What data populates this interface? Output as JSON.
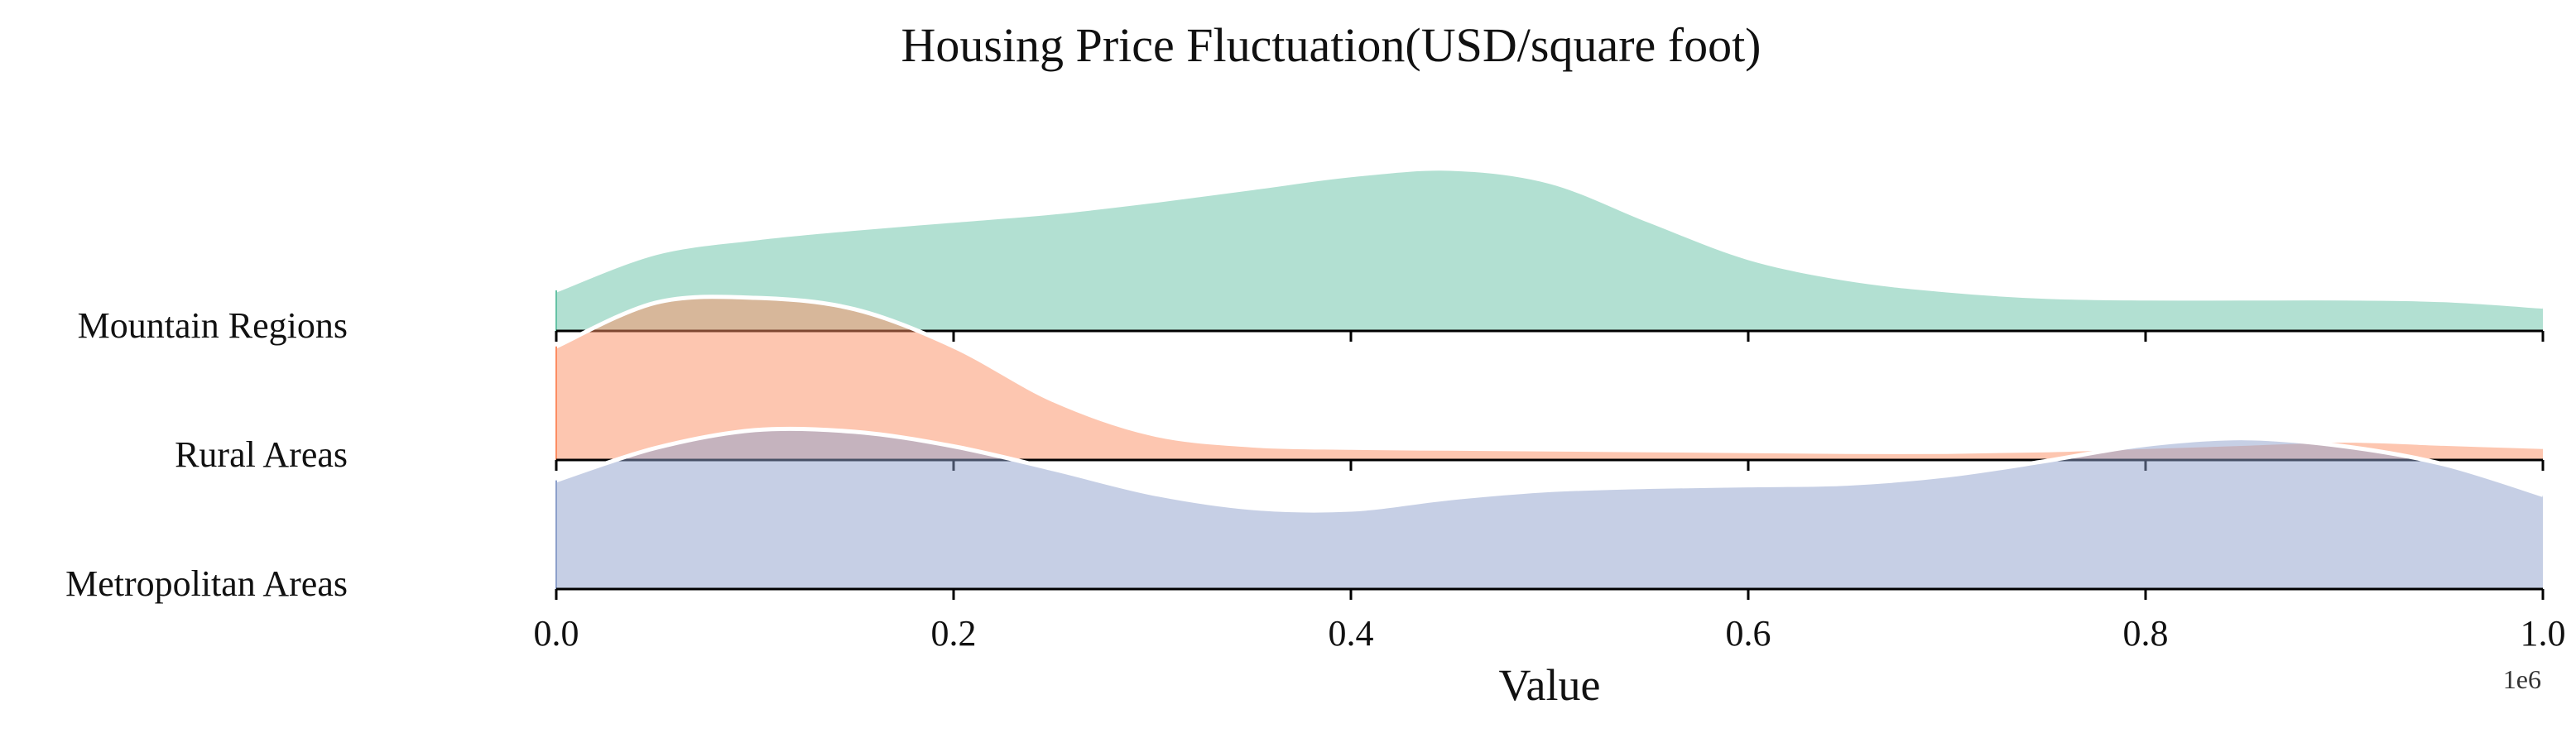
{
  "chart_data": {
    "type": "area",
    "subtype": "ridgeline",
    "title": "Housing Price Fluctuation(USD/square foot)",
    "xlabel": "Value",
    "ylabel": "",
    "x_offset_label": "1e6",
    "xlim": [
      0,
      1000000
    ],
    "x_ticks": [
      0,
      200000,
      400000,
      600000,
      800000,
      1000000
    ],
    "x_tick_labels": [
      "0.0",
      "0.2",
      "0.4",
      "0.6",
      "0.8",
      "1.0"
    ],
    "grid": false,
    "legend": "none",
    "x": [
      0,
      50000,
      100000,
      150000,
      200000,
      250000,
      300000,
      350000,
      400000,
      450000,
      500000,
      550000,
      600000,
      650000,
      700000,
      750000,
      800000,
      850000,
      900000,
      950000,
      1000000
    ],
    "series": [
      {
        "name": "Mountain Regions",
        "color": "#66c2a5",
        "values": [
          0.25,
          0.48,
          0.57,
          0.63,
          0.68,
          0.73,
          0.8,
          0.88,
          0.96,
          1.0,
          0.92,
          0.68,
          0.45,
          0.32,
          0.25,
          0.21,
          0.2,
          0.2,
          0.2,
          0.19,
          0.15
        ]
      },
      {
        "name": "Rural Areas",
        "color": "#fc8d62",
        "values": [
          0.7,
          0.97,
          1.0,
          0.93,
          0.7,
          0.37,
          0.16,
          0.09,
          0.075,
          0.07,
          0.065,
          0.06,
          0.055,
          0.05,
          0.05,
          0.06,
          0.08,
          0.1,
          0.12,
          0.1,
          0.08
        ]
      },
      {
        "name": "Metropolitan Areas",
        "color": "#8da0cb",
        "values": [
          0.67,
          0.87,
          0.98,
          0.97,
          0.88,
          0.74,
          0.59,
          0.5,
          0.49,
          0.56,
          0.61,
          0.63,
          0.64,
          0.65,
          0.7,
          0.79,
          0.89,
          0.93,
          0.88,
          0.77,
          0.58
        ]
      }
    ]
  }
}
